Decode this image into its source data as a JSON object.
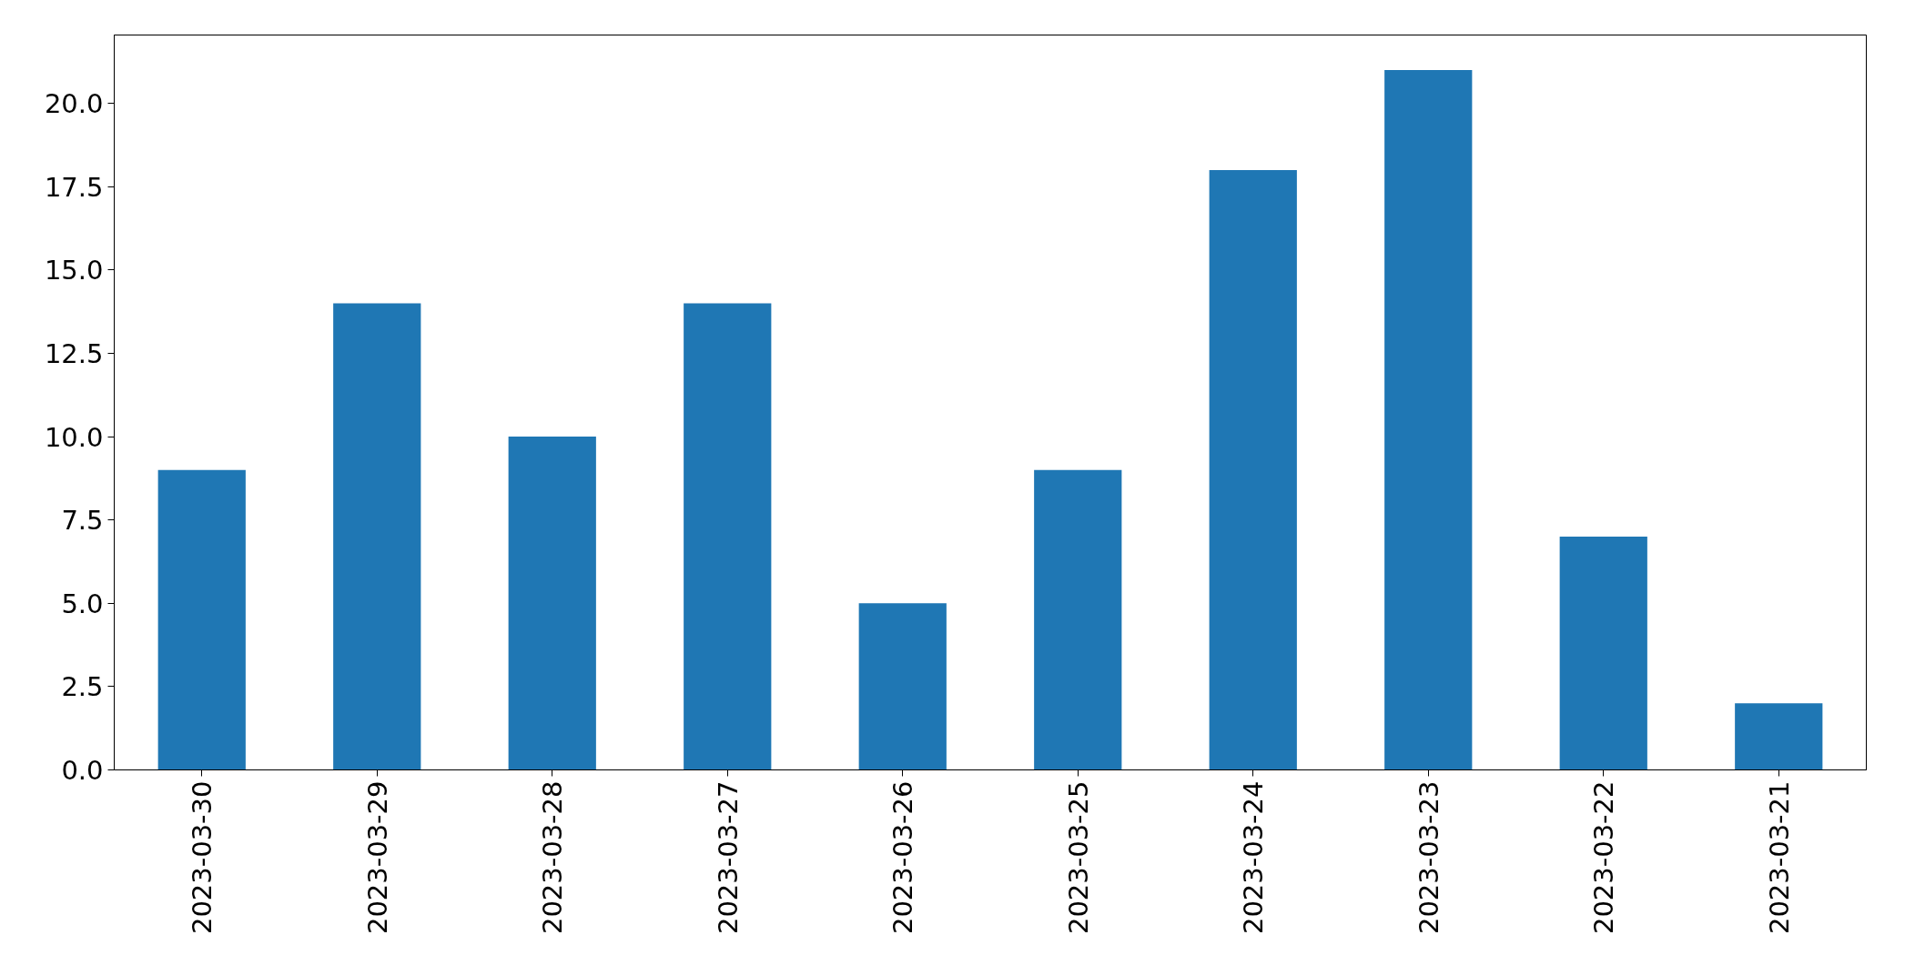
{
  "chart_data": {
    "type": "bar",
    "categories": [
      "2023-03-30",
      "2023-03-29",
      "2023-03-28",
      "2023-03-27",
      "2023-03-26",
      "2023-03-25",
      "2023-03-24",
      "2023-03-23",
      "2023-03-22",
      "2023-03-21"
    ],
    "values": [
      9,
      14,
      10,
      14,
      5,
      9,
      18,
      21,
      7,
      2
    ],
    "color": "#1f77b4",
    "ylim": [
      0,
      22.05
    ],
    "yticks": [
      {
        "value": 0,
        "label": "0.0"
      },
      {
        "value": 2.5,
        "label": "2.5"
      },
      {
        "value": 5,
        "label": "5.0"
      },
      {
        "value": 7.5,
        "label": "7.5"
      },
      {
        "value": 10,
        "label": "10.0"
      },
      {
        "value": 12.5,
        "label": "12.5"
      },
      {
        "value": 15,
        "label": "15.0"
      },
      {
        "value": 17.5,
        "label": "17.5"
      },
      {
        "value": 20,
        "label": "20.0"
      }
    ],
    "grid": false
  }
}
